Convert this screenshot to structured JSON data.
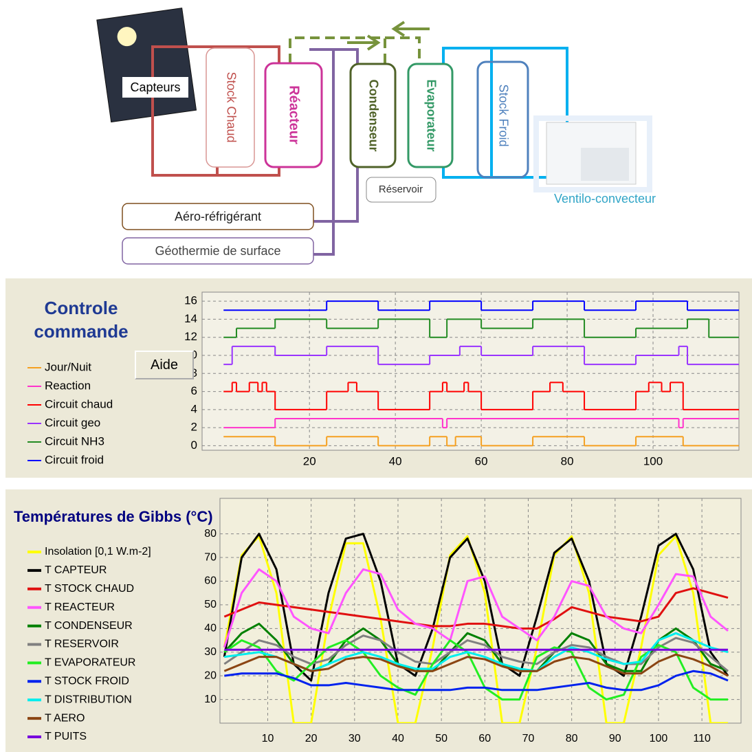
{
  "diagram": {
    "components": [
      {
        "label": "Capteurs"
      },
      {
        "label": "Stock Chaud"
      },
      {
        "label": "Réacteur"
      },
      {
        "label": "Condenseur"
      },
      {
        "label": "Evaporateur"
      },
      {
        "label": "Stock Froid"
      },
      {
        "label": "Réservoir"
      },
      {
        "label": "Ventilo-convecteur"
      },
      {
        "label": "Aéro-réfrigérant"
      },
      {
        "label": "Géothermie de surface"
      }
    ]
  },
  "chart_data": [
    {
      "type": "step",
      "title": "Controle commande",
      "button": "Aide",
      "xlim": [
        -5,
        120
      ],
      "ylim": [
        -0.5,
        17
      ],
      "xticks": [
        20,
        40,
        60,
        80,
        100
      ],
      "yticks": [
        0,
        2,
        4,
        6,
        8,
        10,
        12,
        14,
        16
      ],
      "grid": true,
      "series": [
        {
          "name": "Jour/Nuit",
          "color": "#f5a020",
          "x": [
            0,
            12,
            24,
            36,
            48,
            52,
            54,
            60,
            72,
            84,
            96,
            107
          ],
          "values": [
            1,
            0,
            1,
            0,
            1,
            0,
            1,
            0,
            1,
            0,
            1,
            0
          ]
        },
        {
          "name": "Reaction",
          "color": "#ff33cc",
          "x": [
            0,
            12,
            51,
            52,
            106,
            107
          ],
          "values": [
            2,
            3,
            2,
            3,
            2,
            3
          ]
        },
        {
          "name": "Circuit chaud",
          "color": "#ff0000",
          "x": [
            0,
            2,
            3,
            6,
            8,
            9,
            10,
            12,
            24,
            29,
            31,
            36,
            48,
            51,
            52,
            56,
            57,
            60,
            72,
            76,
            79,
            84,
            96,
            99,
            102,
            104,
            107
          ],
          "values": [
            6,
            7,
            6,
            7,
            6,
            7,
            6,
            4,
            6,
            7,
            6,
            4,
            6,
            7,
            6,
            7,
            6,
            4,
            6,
            7,
            6,
            4,
            6,
            7,
            6,
            7,
            4
          ]
        },
        {
          "name": "Circuit geo",
          "color": "#9933ff",
          "x": [
            0,
            2,
            12,
            24,
            36,
            48,
            55,
            60,
            72,
            84,
            96,
            106,
            108
          ],
          "values": [
            9,
            11,
            10,
            11,
            9,
            10,
            11,
            10,
            11,
            9,
            10,
            11,
            9
          ]
        },
        {
          "name": "Circuit NH3",
          "color": "#228b22",
          "x": [
            0,
            3,
            12,
            24,
            36,
            48,
            52,
            60,
            72,
            84,
            96,
            108,
            113
          ],
          "values": [
            12,
            13,
            14,
            13,
            14,
            12,
            14,
            13,
            14,
            12,
            13,
            14,
            12
          ]
        },
        {
          "name": "Circuit froid",
          "color": "#0000ff",
          "x": [
            0,
            24,
            36,
            48,
            60,
            72,
            84,
            96,
            108
          ],
          "values": [
            15,
            16,
            15,
            16,
            15,
            16,
            15,
            16,
            15
          ]
        }
      ]
    },
    {
      "type": "line",
      "title": "Températures de Gibbs (°C)",
      "xlim": [
        -1,
        119
      ],
      "ylim": [
        0,
        95
      ],
      "xticks": [
        10,
        20,
        30,
        40,
        50,
        60,
        70,
        80,
        90,
        100,
        110
      ],
      "yticks": [
        10,
        20,
        30,
        40,
        50,
        60,
        70,
        80
      ],
      "grid": true,
      "x": [
        0,
        4,
        8,
        12,
        16,
        20,
        24,
        28,
        32,
        36,
        40,
        44,
        48,
        52,
        56,
        60,
        64,
        68,
        72,
        76,
        80,
        84,
        88,
        92,
        96,
        100,
        104,
        108,
        112,
        116
      ],
      "series": [
        {
          "name": "Insolation [0,1 W.m-2]",
          "color": "#ffff00",
          "values": [
            32,
            71,
            79,
            55,
            0,
            0,
            44,
            76,
            76,
            44,
            0,
            0,
            32,
            71,
            79,
            55,
            0,
            0,
            32,
            71,
            79,
            55,
            0,
            0,
            32,
            71,
            79,
            55,
            0,
            0
          ]
        },
        {
          "name": "T CAPTEUR",
          "color": "#000000",
          "values": [
            28,
            70,
            80,
            65,
            25,
            18,
            55,
            78,
            80,
            60,
            25,
            20,
            40,
            70,
            78,
            60,
            25,
            20,
            45,
            72,
            78,
            60,
            25,
            20,
            45,
            75,
            80,
            65,
            30,
            20
          ]
        },
        {
          "name": "T STOCK CHAUD",
          "color": "#e01010",
          "values": [
            45,
            48,
            51,
            50,
            49,
            48,
            47,
            46,
            45,
            44,
            43,
            42,
            41,
            41,
            42,
            42,
            41,
            40,
            40,
            44,
            49,
            47,
            45,
            44,
            43,
            45,
            55,
            57,
            55,
            53
          ]
        },
        {
          "name": "T REACTEUR",
          "color": "#ff55ff",
          "values": [
            32,
            55,
            65,
            60,
            45,
            40,
            38,
            55,
            65,
            63,
            48,
            42,
            40,
            35,
            60,
            62,
            45,
            40,
            35,
            45,
            60,
            58,
            45,
            40,
            38,
            50,
            63,
            62,
            45,
            39
          ]
        },
        {
          "name": "T CONDENSEUR",
          "color": "#008000",
          "values": [
            30,
            38,
            42,
            35,
            25,
            22,
            25,
            35,
            40,
            35,
            25,
            22,
            22,
            30,
            38,
            35,
            25,
            22,
            22,
            30,
            38,
            35,
            25,
            22,
            22,
            35,
            40,
            35,
            25,
            22
          ]
        },
        {
          "name": "T RESERVOIR",
          "color": "#808080",
          "values": [
            25,
            30,
            35,
            33,
            28,
            25,
            27,
            33,
            37,
            35,
            30,
            26,
            25,
            30,
            35,
            33,
            28,
            26,
            25,
            30,
            33,
            32,
            28,
            25,
            25,
            32,
            36,
            34,
            28,
            22
          ]
        },
        {
          "name": "T EVAPORATEUR",
          "color": "#22ee22",
          "values": [
            30,
            35,
            32,
            22,
            18,
            25,
            32,
            35,
            30,
            20,
            15,
            12,
            25,
            35,
            30,
            15,
            10,
            10,
            28,
            32,
            30,
            15,
            10,
            12,
            28,
            33,
            30,
            15,
            10,
            10
          ]
        },
        {
          "name": "T STOCK FROID",
          "color": "#0022ee",
          "values": [
            20,
            21,
            21,
            21,
            19,
            16,
            16,
            17,
            16,
            15,
            14,
            14,
            14,
            14,
            15,
            15,
            14,
            14,
            14,
            15,
            16,
            17,
            15,
            14,
            14,
            16,
            20,
            22,
            21,
            18
          ]
        },
        {
          "name": "T DISTRIBUTION",
          "color": "#00eeee",
          "values": [
            28,
            29,
            30,
            28,
            25,
            22,
            25,
            28,
            30,
            28,
            25,
            23,
            23,
            28,
            30,
            28,
            25,
            23,
            22,
            28,
            32,
            30,
            27,
            25,
            26,
            35,
            38,
            35,
            32,
            30
          ]
        },
        {
          "name": "T AERO",
          "color": "#8b4513",
          "values": [
            22,
            25,
            28,
            28,
            25,
            22,
            23,
            27,
            28,
            27,
            24,
            22,
            22,
            25,
            28,
            27,
            24,
            22,
            22,
            26,
            28,
            27,
            24,
            21,
            21,
            26,
            29,
            27,
            24,
            20
          ]
        },
        {
          "name": "T PUITS",
          "color": "#7700dd",
          "values": [
            31,
            31,
            31,
            31,
            31,
            31,
            31,
            31,
            31,
            31,
            31,
            31,
            31,
            31,
            31,
            31,
            31,
            31,
            31,
            31,
            31,
            31,
            31,
            31,
            31,
            31,
            31,
            31,
            31,
            31
          ]
        }
      ]
    }
  ]
}
